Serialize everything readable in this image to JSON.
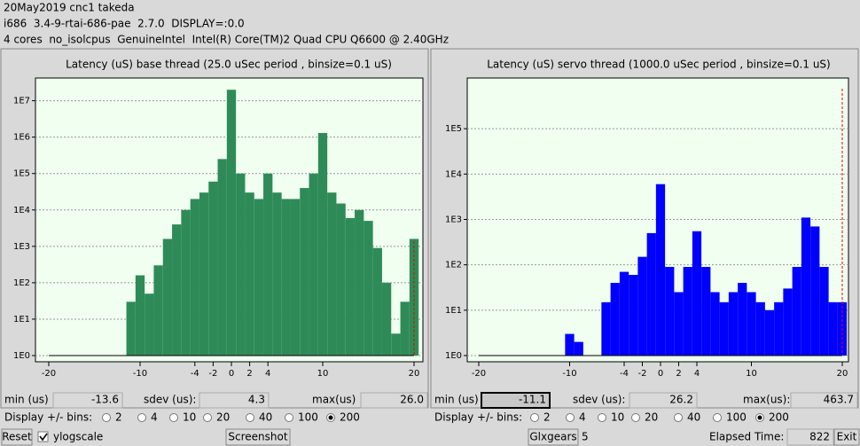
{
  "header": {
    "lines": [
      "20May2019 cnc1 takeda",
      "i686  3.4-9-rtai-686-pae  2.7.0  DISPLAY=:0.0",
      "4 cores  no_isolcpus  GenuineIntel  Intel(R) Core(TM)2 Quad CPU Q6600 @ 2.40GHz"
    ]
  },
  "chart_data": [
    {
      "type": "histogram",
      "title": "Latency (uS) base thread (25.0 uSec period , binsize=0.1 uS)",
      "color": "#2e8b57",
      "log_scale": true,
      "grid": true,
      "x": [
        -20,
        -19,
        -18,
        -17,
        -16,
        -15,
        -14,
        -13,
        -12,
        -11,
        -10,
        -9,
        -8,
        -7,
        -6,
        -5,
        -4,
        -3,
        -2,
        -1,
        0,
        1,
        2,
        3,
        4,
        5,
        6,
        7,
        8,
        9,
        10,
        11,
        12,
        13,
        14,
        15,
        16,
        17,
        18,
        19,
        20
      ],
      "values": [
        1,
        1,
        1,
        1,
        1,
        1,
        1,
        1,
        1,
        30,
        160,
        50,
        300,
        1600,
        4000,
        10000,
        20000,
        30000,
        60000,
        250000,
        20000000,
        100000,
        30000,
        20000,
        100000,
        30000,
        20000,
        20000,
        40000,
        100000,
        1300000,
        30000,
        15000,
        6000,
        10000,
        5000,
        900,
        100,
        4,
        30,
        1600
      ],
      "xlim": [
        -20,
        20
      ],
      "xticks": [
        -20,
        -10,
        -4,
        -2,
        0,
        2,
        4,
        10,
        20
      ],
      "ylim": [
        1,
        30000000
      ],
      "yticks": [
        {
          "value": 1,
          "label": "1E0"
        },
        {
          "value": 10,
          "label": "1E1"
        },
        {
          "value": 100,
          "label": "1E2"
        },
        {
          "value": 1000,
          "label": "1E3"
        },
        {
          "value": 10000,
          "label": "1E4"
        },
        {
          "value": 100000,
          "label": "1E5"
        },
        {
          "value": 1000000,
          "label": "1E6"
        },
        {
          "value": 10000000,
          "label": "1E7"
        }
      ]
    },
    {
      "type": "histogram",
      "title": "Latency (uS) servo thread (1000.0 uSec period , binsize=0.1 uS)",
      "color": "#0000ff",
      "log_scale": true,
      "grid": true,
      "x": [
        -20,
        -19,
        -18,
        -17,
        -16,
        -15,
        -14,
        -13,
        -12,
        -11,
        -10,
        -9,
        -8,
        -7,
        -6,
        -5,
        -4,
        -3,
        -2,
        -1,
        0,
        1,
        2,
        3,
        4,
        5,
        6,
        7,
        8,
        9,
        10,
        11,
        12,
        13,
        14,
        15,
        16,
        17,
        18,
        19,
        20
      ],
      "values": [
        1,
        1,
        1,
        1,
        1,
        1,
        1,
        1,
        1,
        1,
        3,
        2,
        1,
        1,
        15,
        40,
        70,
        60,
        150,
        500,
        6000,
        90,
        25,
        90,
        550,
        90,
        25,
        15,
        25,
        40,
        25,
        15,
        10,
        15,
        30,
        90,
        1100,
        700,
        90,
        15,
        15
      ],
      "xlim": [
        -20,
        20
      ],
      "xticks": [
        -20,
        -10,
        -4,
        -2,
        0,
        2,
        4,
        10,
        20
      ],
      "ylim": [
        1,
        1000000
      ],
      "yticks": [
        {
          "value": 1,
          "label": "1E0"
        },
        {
          "value": 10,
          "label": "1E1"
        },
        {
          "value": 100,
          "label": "1E2"
        },
        {
          "value": 1000,
          "label": "1E3"
        },
        {
          "value": 10000,
          "label": "1E4"
        },
        {
          "value": 100000,
          "label": "1E5"
        }
      ]
    }
  ],
  "panels": [
    {
      "stats": [
        {
          "label": "min (us)",
          "value": "-13.6"
        },
        {
          "label": "sdev (us):",
          "value": "4.3"
        },
        {
          "label": "max(us)",
          "value": "26.0"
        }
      ],
      "bins_label": "Display +/- bins:",
      "bin_options": [
        "2",
        "4",
        "10",
        "20",
        "40",
        "100",
        "200"
      ],
      "selected": "200"
    },
    {
      "stats": [
        {
          "label": "min (us)",
          "value": "-11.1"
        },
        {
          "label": "sdev (us):",
          "value": "26.2"
        },
        {
          "label": "max(us):",
          "value": "463.7"
        }
      ],
      "bins_label": "Display +/- bins:",
      "bin_options": [
        "2",
        "4",
        "10",
        "20",
        "40",
        "100",
        "200"
      ],
      "selected": "200"
    }
  ],
  "footer": {
    "reset": "Reset",
    "ylogscale": "ylogscale",
    "ylogscale_checked": true,
    "screenshot": "Screenshot",
    "glxgears": "Glxgears",
    "glxgears_count": "5",
    "elapsed_label": "Elapsed Time:",
    "elapsed": "822",
    "exit": "Exit"
  }
}
